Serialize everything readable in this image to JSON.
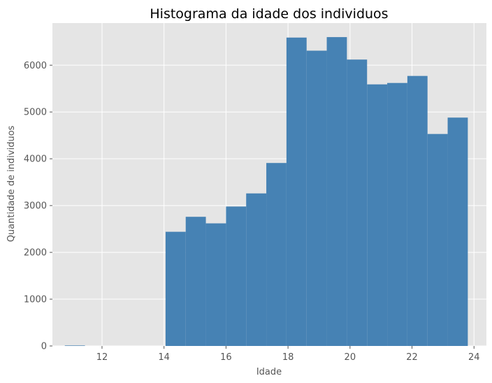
{
  "chart_data": {
    "type": "bar",
    "title": "Histograma da idade dos individuos",
    "xlabel": "Idade",
    "ylabel": "Quantidade de individuos",
    "xlim": [
      10.4,
      24.4
    ],
    "ylim": [
      0,
      6900
    ],
    "xticks": [
      12,
      14,
      16,
      18,
      20,
      22,
      24
    ],
    "yticks": [
      0,
      1000,
      2000,
      3000,
      4000,
      5000,
      6000
    ],
    "grid": true,
    "bar_color": "#4682b4",
    "background_color": "#e5e5e5",
    "bins": [
      {
        "x0": 10.8,
        "x1": 11.45,
        "value": 10
      },
      {
        "x0": 14.05,
        "x1": 14.7,
        "value": 2440
      },
      {
        "x0": 14.7,
        "x1": 15.35,
        "value": 2760
      },
      {
        "x0": 15.35,
        "x1": 16.0,
        "value": 2620
      },
      {
        "x0": 16.0,
        "x1": 16.65,
        "value": 2980
      },
      {
        "x0": 16.65,
        "x1": 17.3,
        "value": 3260
      },
      {
        "x0": 17.3,
        "x1": 17.95,
        "value": 3910
      },
      {
        "x0": 17.95,
        "x1": 18.6,
        "value": 6590
      },
      {
        "x0": 18.6,
        "x1": 19.25,
        "value": 6310
      },
      {
        "x0": 19.25,
        "x1": 19.9,
        "value": 6600
      },
      {
        "x0": 19.9,
        "x1": 20.55,
        "value": 6120
      },
      {
        "x0": 20.55,
        "x1": 21.2,
        "value": 5590
      },
      {
        "x0": 21.2,
        "x1": 21.85,
        "value": 5620
      },
      {
        "x0": 21.85,
        "x1": 22.5,
        "value": 5770
      },
      {
        "x0": 22.5,
        "x1": 23.15,
        "value": 4530
      },
      {
        "x0": 23.15,
        "x1": 23.8,
        "value": 4880
      }
    ]
  }
}
